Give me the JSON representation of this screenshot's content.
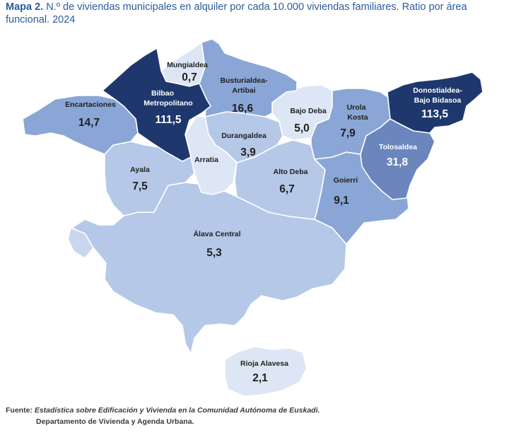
{
  "title": {
    "prefix": "Mapa 2.",
    "text": "N.º de viviendas municipales en alquiler por cada 10.000 viviendas familiares. Ratio por área funcional. 2024"
  },
  "colors": {
    "title": "#2a5d9a",
    "very_light": "#dde6f4",
    "light": "#b5c8e8",
    "medium": "#8aa6d6",
    "medium_dark": "#6b85bd",
    "dark": "#1e386e"
  },
  "regions": {
    "mungialdea": {
      "name": "Mungialdea",
      "value": "0,7"
    },
    "busturialdea": {
      "name_line1": "Busturialdea-",
      "name_line2": "Artibai",
      "value": "16,6"
    },
    "bilbao": {
      "name_line1": "Bilbao",
      "name_line2": "Metropolitano",
      "value": "111,5"
    },
    "encartaciones": {
      "name": "Encartaciones",
      "value": "14,7"
    },
    "bajo_deba": {
      "name": "Bajo Deba",
      "value": "5,0"
    },
    "urola_kosta": {
      "name_line1": "Urola",
      "name_line2": "Kosta",
      "value": "7,9"
    },
    "donostialdea": {
      "name_line1": "Donostialdea-",
      "name_line2": "Bajo Bidasoa",
      "value": "113,5"
    },
    "durangaldea": {
      "name": "Durangaldea",
      "value": "3,9"
    },
    "arratia": {
      "name": "Arratia"
    },
    "tolosaldea": {
      "name": "Tolosaldea",
      "value": "31,8"
    },
    "ayala": {
      "name": "Ayala",
      "value": "7,5"
    },
    "alto_deba": {
      "name": "Alto Deba",
      "value": "6,7"
    },
    "goierri": {
      "name": "Goierri",
      "value": "9,1"
    },
    "alava_central": {
      "name": "Álava Central",
      "value": "5,3"
    },
    "rioja_alavesa": {
      "name": "Rioja Alavesa",
      "value": "2,1"
    }
  },
  "source": {
    "label": "Fuente:",
    "line1": "Estadística sobre Edificación y Vivienda en la Comunidad Autónoma de Euskadi.",
    "line2": "Departamento de Vivienda y Agenda Urbana."
  }
}
